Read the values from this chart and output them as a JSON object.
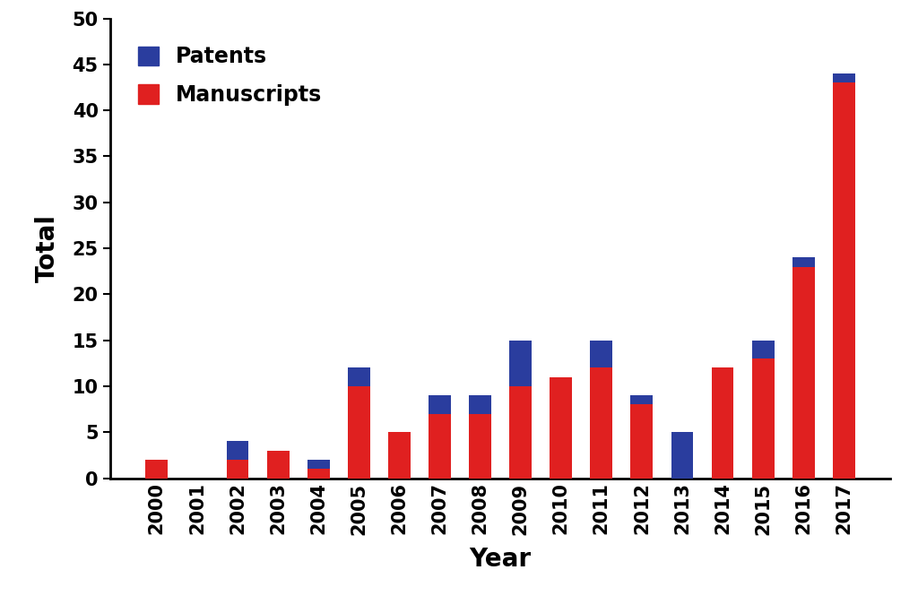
{
  "years": [
    2000,
    2001,
    2002,
    2003,
    2004,
    2005,
    2006,
    2007,
    2008,
    2009,
    2010,
    2011,
    2012,
    2013,
    2014,
    2015,
    2016,
    2017
  ],
  "manuscripts": [
    2,
    0,
    2,
    3,
    1,
    10,
    5,
    7,
    7,
    10,
    11,
    12,
    8,
    0,
    12,
    13,
    23,
    43
  ],
  "patents": [
    0,
    0,
    2,
    0,
    1,
    2,
    0,
    2,
    2,
    5,
    0,
    3,
    1,
    5,
    0,
    2,
    1,
    1
  ],
  "ylabel": "Total",
  "xlabel": "Year",
  "ylim": [
    0,
    50
  ],
  "yticks": [
    0,
    5,
    10,
    15,
    20,
    25,
    30,
    35,
    40,
    45,
    50
  ],
  "manuscripts_color": "#e02020",
  "patents_color": "#2a3d9e",
  "manuscripts_label": "Manuscripts",
  "patents_label": "Patents",
  "background_color": "#ffffff",
  "bar_width": 0.55,
  "ylabel_fontsize": 20,
  "xlabel_fontsize": 20,
  "tick_fontsize": 15,
  "legend_fontsize": 17
}
